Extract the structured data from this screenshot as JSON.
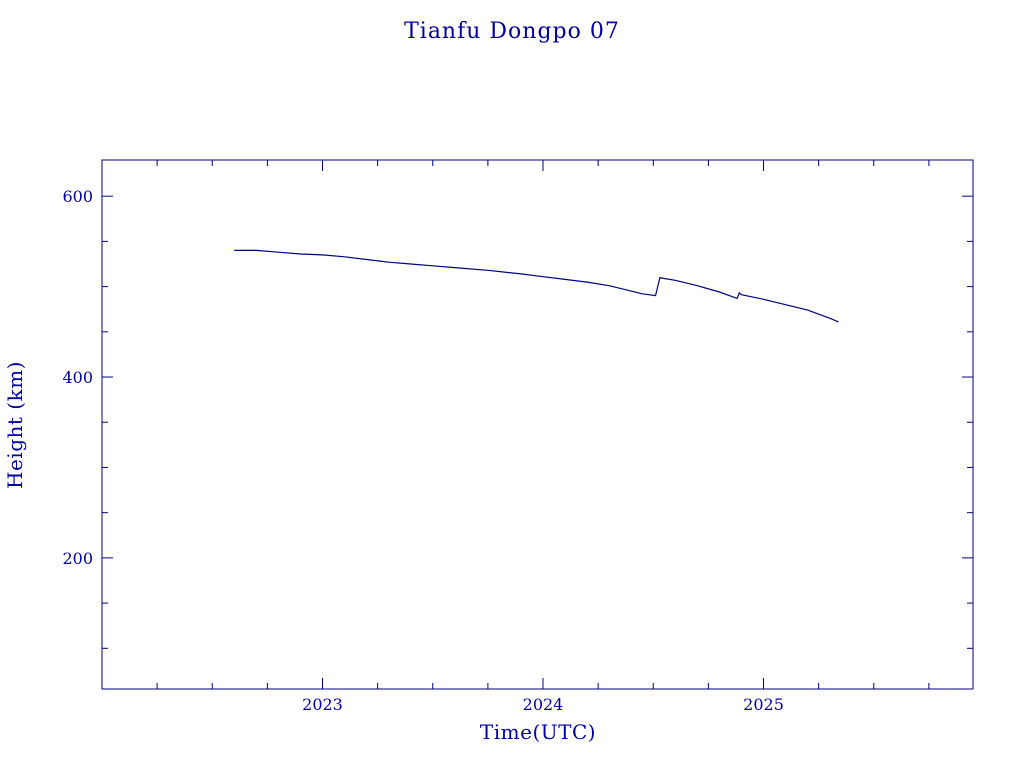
{
  "chart_data": {
    "type": "line",
    "title": "Tianfu Dongpo 07",
    "xlabel": "Time(UTC)",
    "ylabel": "Height (km)",
    "xlim": [
      2022.0,
      2025.95
    ],
    "ylim": [
      55,
      640
    ],
    "x_ticks": [
      2023,
      2024,
      2025
    ],
    "x_tick_labels": [
      "2023",
      "2024",
      "2025"
    ],
    "y_ticks": [
      200,
      400,
      600
    ],
    "y_tick_labels": [
      "200",
      "400",
      "600"
    ],
    "grid": false,
    "legend": "none",
    "line_color": "#000080",
    "axis_color": "#000080",
    "text_color": "#0000a0",
    "series": [
      {
        "x": [
          2022.6,
          2022.7,
          2022.8,
          2022.9,
          2023.0,
          2023.1,
          2023.2,
          2023.3,
          2023.4,
          2023.5,
          2023.6,
          2023.75,
          2023.9,
          2024.0,
          2024.1,
          2024.2,
          2024.3,
          2024.4,
          2024.45,
          2024.51,
          2024.52,
          2024.53,
          2024.55,
          2024.6,
          2024.7,
          2024.8,
          2024.88,
          2024.89,
          2024.9,
          2025.0,
          2025.1,
          2025.2,
          2025.3,
          2025.34
        ],
        "y": [
          540,
          540,
          538,
          536,
          535,
          533,
          530,
          527,
          525,
          523,
          521,
          518,
          514,
          511,
          508,
          505,
          501,
          495,
          492,
          490,
          500,
          510,
          509,
          507,
          501,
          494,
          487,
          493,
          491,
          486,
          480,
          474,
          465,
          461
        ]
      }
    ]
  }
}
